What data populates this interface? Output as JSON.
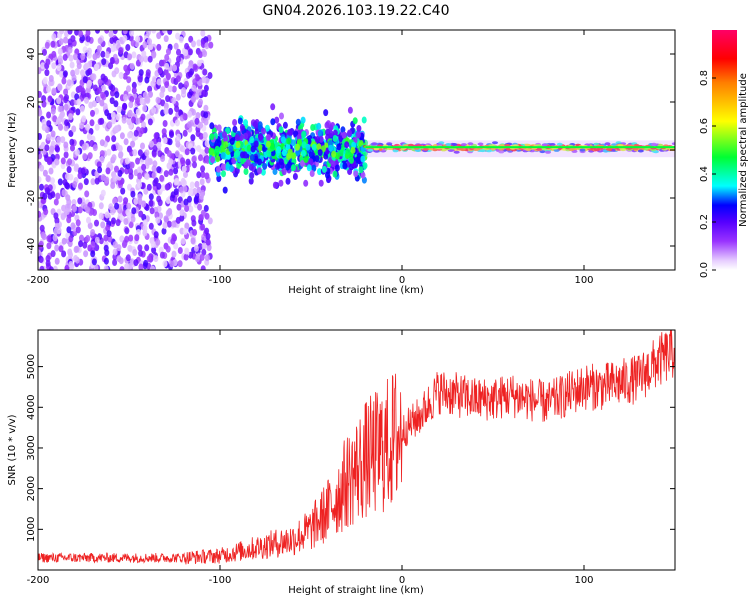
{
  "title": "GN04.2026.103.19.22.C40",
  "chart_data": [
    {
      "type": "heatmap",
      "xlabel": "Height of straight line (km)",
      "ylabel": "Frequency (Hz)",
      "xlim": [
        -200,
        150
      ],
      "ylim": [
        -50,
        50
      ],
      "xticks": [
        -200,
        -100,
        0,
        100
      ],
      "yticks": [
        -40,
        -20,
        0,
        20,
        40
      ],
      "colorbar": {
        "label": "Normalized spectral amplitude",
        "range": [
          0,
          1
        ],
        "ticks": [
          0.0,
          0.2,
          0.4,
          0.6,
          0.8
        ],
        "colors": [
          "#ffffff",
          "#e6ccff",
          "#9933ff",
          "#5500ff",
          "#0000ff",
          "#00ffff",
          "#00ff33",
          "#ffff00",
          "#ff7f00",
          "#ff0000",
          "#ff0066"
        ]
      },
      "regions": [
        {
          "x_range": [
            -200,
            -105
          ],
          "freq_spread": 50,
          "amplitude": 0.15
        },
        {
          "x_range": [
            -105,
            -20
          ],
          "freq_spread": 10,
          "amplitude": 0.3
        },
        {
          "x_range": [
            -20,
            150
          ],
          "freq_center": 1,
          "amplitude": 0.9
        }
      ]
    },
    {
      "type": "line",
      "xlabel": "Height of straight line (km)",
      "ylabel": "SNR (10 * v/v)",
      "xlim": [
        -200,
        150
      ],
      "ylim": [
        0,
        5900
      ],
      "xticks": [
        -200,
        -100,
        0,
        100
      ],
      "yticks": [
        1000,
        2000,
        3000,
        4000,
        5000
      ],
      "color": "#ee2222",
      "trend": {
        "x": [
          -200,
          -120,
          -100,
          -80,
          -60,
          -50,
          -40,
          -30,
          -20,
          -10,
          0,
          10,
          20,
          30,
          40,
          50,
          60,
          70,
          80,
          90,
          100,
          110,
          120,
          130,
          140,
          150
        ],
        "y": [
          300,
          300,
          350,
          550,
          750,
          1000,
          1500,
          2200,
          2700,
          3000,
          3400,
          3800,
          4400,
          4300,
          4200,
          4200,
          4300,
          4200,
          4100,
          4300,
          4500,
          4500,
          4600,
          4700,
          5100,
          5400
        ]
      }
    }
  ]
}
